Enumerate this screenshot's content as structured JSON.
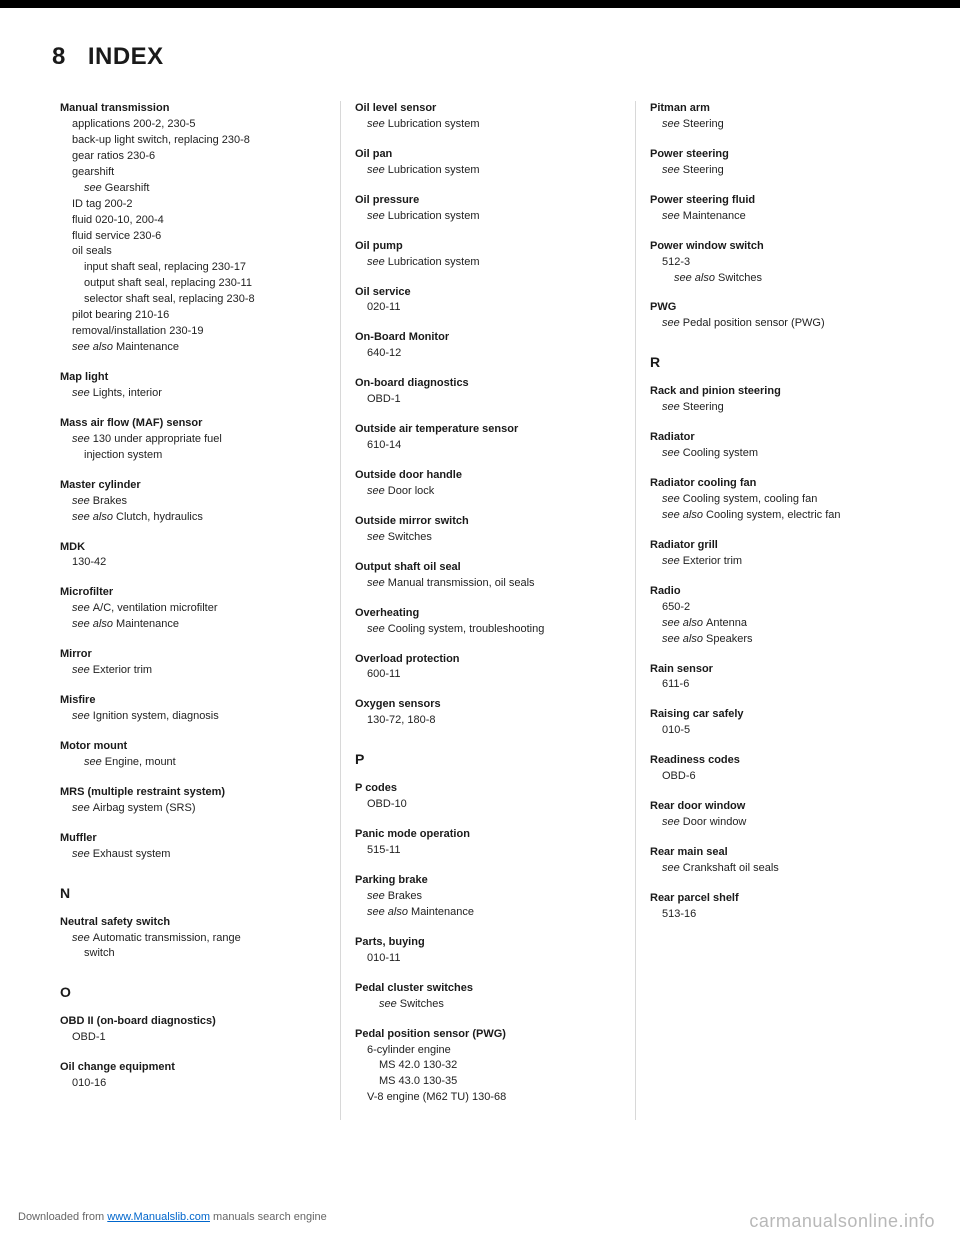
{
  "page": {
    "number": "8",
    "title": "INDEX"
  },
  "col1": [
    {
      "type": "entry",
      "title": "Manual transmission",
      "lines": [
        {
          "t": "applications 200-2, 230-5",
          "c": "sub"
        },
        {
          "t": "back-up light switch, replacing 230-8",
          "c": "sub"
        },
        {
          "t": "gear ratios 230-6",
          "c": "sub"
        },
        {
          "t": "gearshift",
          "c": "sub"
        },
        {
          "t": "see Gearshift",
          "c": "sub2",
          "i": 1
        },
        {
          "t": "ID tag 200-2",
          "c": "sub"
        },
        {
          "t": "fluid 020-10, 200-4",
          "c": "sub"
        },
        {
          "t": "fluid service 230-6",
          "c": "sub"
        },
        {
          "t": "oil seals",
          "c": "sub"
        },
        {
          "t": "input shaft seal, replacing 230-17",
          "c": "sub2"
        },
        {
          "t": "output shaft seal, replacing 230-11",
          "c": "sub2"
        },
        {
          "t": "selector shaft seal, replacing 230-8",
          "c": "sub2"
        },
        {
          "t": "pilot bearing 210-16",
          "c": "sub"
        },
        {
          "t": "removal/installation 230-19",
          "c": "sub"
        },
        {
          "t": "see also Maintenance",
          "c": "sub",
          "i": 1
        }
      ]
    },
    {
      "type": "entry",
      "title": "Map light",
      "lines": [
        {
          "t": "see Lights, interior",
          "c": "sub",
          "i": 1
        }
      ]
    },
    {
      "type": "entry",
      "title": "Mass air flow (MAF) sensor",
      "lines": [
        {
          "t": "see 130 under appropriate fuel",
          "c": "sub",
          "i": 1
        },
        {
          "t": "injection system",
          "c": "sub2"
        }
      ]
    },
    {
      "type": "entry",
      "title": "Master cylinder",
      "lines": [
        {
          "t": "see Brakes",
          "c": "sub",
          "i": 1
        },
        {
          "t": "see also Clutch, hydraulics",
          "c": "sub",
          "i": 1
        }
      ]
    },
    {
      "type": "entry",
      "title": "MDK",
      "lines": [
        {
          "t": "130-42",
          "c": "sub"
        }
      ]
    },
    {
      "type": "entry",
      "title": "Microfilter",
      "lines": [
        {
          "t": "see A/C, ventilation microfilter",
          "c": "sub",
          "i": 1
        },
        {
          "t": "see also Maintenance",
          "c": "sub",
          "i": 1
        }
      ]
    },
    {
      "type": "entry",
      "title": "Mirror",
      "lines": [
        {
          "t": "see Exterior trim",
          "c": "sub",
          "i": 1
        }
      ]
    },
    {
      "type": "entry",
      "title": "Misfire",
      "lines": [
        {
          "t": "see Ignition system, diagnosis",
          "c": "sub",
          "i": 1
        }
      ]
    },
    {
      "type": "entry",
      "title": "Motor mount",
      "lines": [
        {
          "t": "see Engine, mount",
          "c": "sub2",
          "i": 1
        }
      ]
    },
    {
      "type": "entry",
      "title": "MRS (multiple restraint system)",
      "lines": [
        {
          "t": "see Airbag system (SRS)",
          "c": "sub",
          "i": 1
        }
      ]
    },
    {
      "type": "entry",
      "title": "Muffler",
      "lines": [
        {
          "t": "see Exhaust system",
          "c": "sub",
          "i": 1
        }
      ]
    },
    {
      "type": "section",
      "letter": "N"
    },
    {
      "type": "entry",
      "title": "Neutral safety switch",
      "lines": [
        {
          "t": "see Automatic transmission, range",
          "c": "sub",
          "i": 1
        },
        {
          "t": "switch",
          "c": "sub2"
        }
      ]
    },
    {
      "type": "section",
      "letter": "O"
    },
    {
      "type": "entry",
      "title": "OBD II (on-board diagnostics)",
      "lines": [
        {
          "t": "OBD-1",
          "c": "sub"
        }
      ]
    },
    {
      "type": "entry",
      "title": "Oil change equipment",
      "lines": [
        {
          "t": "010-16",
          "c": "sub"
        }
      ]
    }
  ],
  "col2": [
    {
      "type": "entry",
      "title": "Oil level sensor",
      "lines": [
        {
          "t": "see Lubrication system",
          "c": "sub",
          "i": 1
        }
      ]
    },
    {
      "type": "entry",
      "title": "Oil pan",
      "lines": [
        {
          "t": "see Lubrication system",
          "c": "sub",
          "i": 1
        }
      ]
    },
    {
      "type": "entry",
      "title": "Oil pressure",
      "lines": [
        {
          "t": "see Lubrication system",
          "c": "sub",
          "i": 1
        }
      ]
    },
    {
      "type": "entry",
      "title": "Oil pump",
      "lines": [
        {
          "t": "see Lubrication system",
          "c": "sub",
          "i": 1
        }
      ]
    },
    {
      "type": "entry",
      "title": "Oil service",
      "lines": [
        {
          "t": "020-11",
          "c": "sub"
        }
      ]
    },
    {
      "type": "entry",
      "title": "On-Board Monitor",
      "lines": [
        {
          "t": "640-12",
          "c": "sub"
        }
      ]
    },
    {
      "type": "entry",
      "title": "On-board diagnostics",
      "lines": [
        {
          "t": "OBD-1",
          "c": "sub"
        }
      ]
    },
    {
      "type": "entry",
      "title": "Outside air temperature sensor",
      "lines": [
        {
          "t": "610-14",
          "c": "sub"
        }
      ]
    },
    {
      "type": "entry",
      "title": "Outside door handle",
      "lines": [
        {
          "t": "see Door lock",
          "c": "sub",
          "i": 1
        }
      ]
    },
    {
      "type": "entry",
      "title": "Outside mirror switch",
      "lines": [
        {
          "t": "see Switches",
          "c": "sub",
          "i": 1
        }
      ]
    },
    {
      "type": "entry",
      "title": "Output shaft oil seal",
      "lines": [
        {
          "t": "see Manual transmission, oil seals",
          "c": "sub",
          "i": 1
        }
      ]
    },
    {
      "type": "entry",
      "title": "Overheating",
      "lines": [
        {
          "t": "see Cooling system, troubleshooting",
          "c": "sub",
          "i": 1
        }
      ]
    },
    {
      "type": "entry",
      "title": "Overload protection",
      "lines": [
        {
          "t": "600-11",
          "c": "sub"
        }
      ]
    },
    {
      "type": "entry",
      "title": "Oxygen sensors",
      "lines": [
        {
          "t": "130-72, 180-8",
          "c": "sub"
        }
      ]
    },
    {
      "type": "section",
      "letter": "P"
    },
    {
      "type": "entry",
      "title": "P codes",
      "lines": [
        {
          "t": "OBD-10",
          "c": "sub"
        }
      ]
    },
    {
      "type": "entry",
      "title": "Panic mode operation",
      "lines": [
        {
          "t": "515-11",
          "c": "sub"
        }
      ]
    },
    {
      "type": "entry",
      "title": "Parking brake",
      "lines": [
        {
          "t": "see Brakes",
          "c": "sub",
          "i": 1
        },
        {
          "t": "see also Maintenance",
          "c": "sub",
          "i": 1
        }
      ]
    },
    {
      "type": "entry",
      "title": "Parts, buying",
      "lines": [
        {
          "t": "010-11",
          "c": "sub"
        }
      ]
    },
    {
      "type": "entry",
      "title": "Pedal cluster switches",
      "lines": [
        {
          "t": "see Switches",
          "c": "sub2",
          "i": 1
        }
      ]
    },
    {
      "type": "entry",
      "title": "Pedal position sensor (PWG)",
      "lines": [
        {
          "t": "6-cylinder engine",
          "c": "sub"
        },
        {
          "t": "MS 42.0 130-32",
          "c": "sub2"
        },
        {
          "t": "MS 43.0 130-35",
          "c": "sub2"
        },
        {
          "t": "V-8 engine (M62 TU) 130-68",
          "c": "sub"
        }
      ]
    }
  ],
  "col3": [
    {
      "type": "entry",
      "title": "Pitman arm",
      "lines": [
        {
          "t": "see Steering",
          "c": "sub",
          "i": 1
        }
      ]
    },
    {
      "type": "entry",
      "title": "Power steering",
      "lines": [
        {
          "t": "see Steering",
          "c": "sub",
          "i": 1
        }
      ]
    },
    {
      "type": "entry",
      "title": "Power steering fluid",
      "lines": [
        {
          "t": "see Maintenance",
          "c": "sub",
          "i": 1
        }
      ]
    },
    {
      "type": "entry",
      "title": "Power window switch",
      "lines": [
        {
          "t": "512-3",
          "c": "sub"
        },
        {
          "t": "see also Switches",
          "c": "sub2",
          "i": 1
        }
      ]
    },
    {
      "type": "entry",
      "title": "PWG",
      "lines": [
        {
          "t": "see Pedal position sensor (PWG)",
          "c": "sub",
          "i": 1
        }
      ]
    },
    {
      "type": "section",
      "letter": "R"
    },
    {
      "type": "entry",
      "title": "Rack and pinion steering",
      "lines": [
        {
          "t": "see Steering",
          "c": "sub",
          "i": 1
        }
      ]
    },
    {
      "type": "entry",
      "title": "Radiator",
      "lines": [
        {
          "t": "see Cooling system",
          "c": "sub",
          "i": 1
        }
      ]
    },
    {
      "type": "entry",
      "title": "Radiator cooling fan",
      "lines": [
        {
          "t": "see Cooling system, cooling fan",
          "c": "sub",
          "i": 1
        },
        {
          "t": "see also Cooling system, electric fan",
          "c": "sub",
          "i": 1
        }
      ]
    },
    {
      "type": "entry",
      "title": "Radiator grill",
      "lines": [
        {
          "t": "see Exterior trim",
          "c": "sub",
          "i": 1
        }
      ]
    },
    {
      "type": "entry",
      "title": "Radio",
      "lines": [
        {
          "t": "650-2",
          "c": "sub"
        },
        {
          "t": "see also Antenna",
          "c": "sub",
          "i": 1
        },
        {
          "t": "see also Speakers",
          "c": "sub",
          "i": 1
        }
      ]
    },
    {
      "type": "entry",
      "title": "Rain sensor",
      "lines": [
        {
          "t": "611-6",
          "c": "sub"
        }
      ]
    },
    {
      "type": "entry",
      "title": "Raising car safely",
      "lines": [
        {
          "t": "010-5",
          "c": "sub"
        }
      ]
    },
    {
      "type": "entry",
      "title": "Readiness codes",
      "lines": [
        {
          "t": "OBD-6",
          "c": "sub"
        }
      ]
    },
    {
      "type": "entry",
      "title": "Rear door window",
      "lines": [
        {
          "t": "see Door window",
          "c": "sub",
          "i": 1
        }
      ]
    },
    {
      "type": "entry",
      "title": "Rear main seal",
      "lines": [
        {
          "t": "see Crankshaft oil seals",
          "c": "sub",
          "i": 1
        }
      ]
    },
    {
      "type": "entry",
      "title": "Rear parcel shelf",
      "lines": [
        {
          "t": "513-16",
          "c": "sub"
        }
      ]
    }
  ],
  "footer": {
    "left_prefix": "Downloaded from ",
    "left_link": "www.Manualslib.com",
    "left_suffix": " manuals search engine",
    "right": "carmanualsonline.info"
  }
}
